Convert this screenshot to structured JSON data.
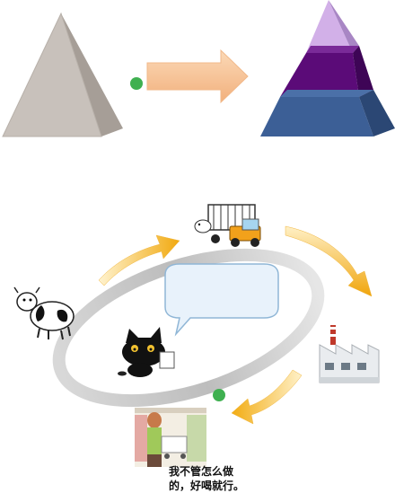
{
  "colors": {
    "accent_green": "#3fb050",
    "arrow_peach": "#f7c08f",
    "arrow_orange": "#f3b327",
    "pyramid_grey": "#c9c2bc",
    "pyramid_lavender": "#c9a6e0",
    "pyramid_purple": "#5a0a78",
    "pyramid_blue": "#3b5f95"
  },
  "icons": {
    "top_left": "grey-pyramid-icon",
    "top_arrow": "right-arrow-icon",
    "top_right": "layered-pyramid-icon",
    "truck": "livestock-truck-icon",
    "cow": "dairy-cow-icon",
    "factory": "factory-icon",
    "cat": "black-cat-icon",
    "shopper": "supermarket-shopper-icon"
  },
  "speech_bubble": {
    "line1": "我不管怎么做",
    "line2": "的，好喝就行。"
  }
}
